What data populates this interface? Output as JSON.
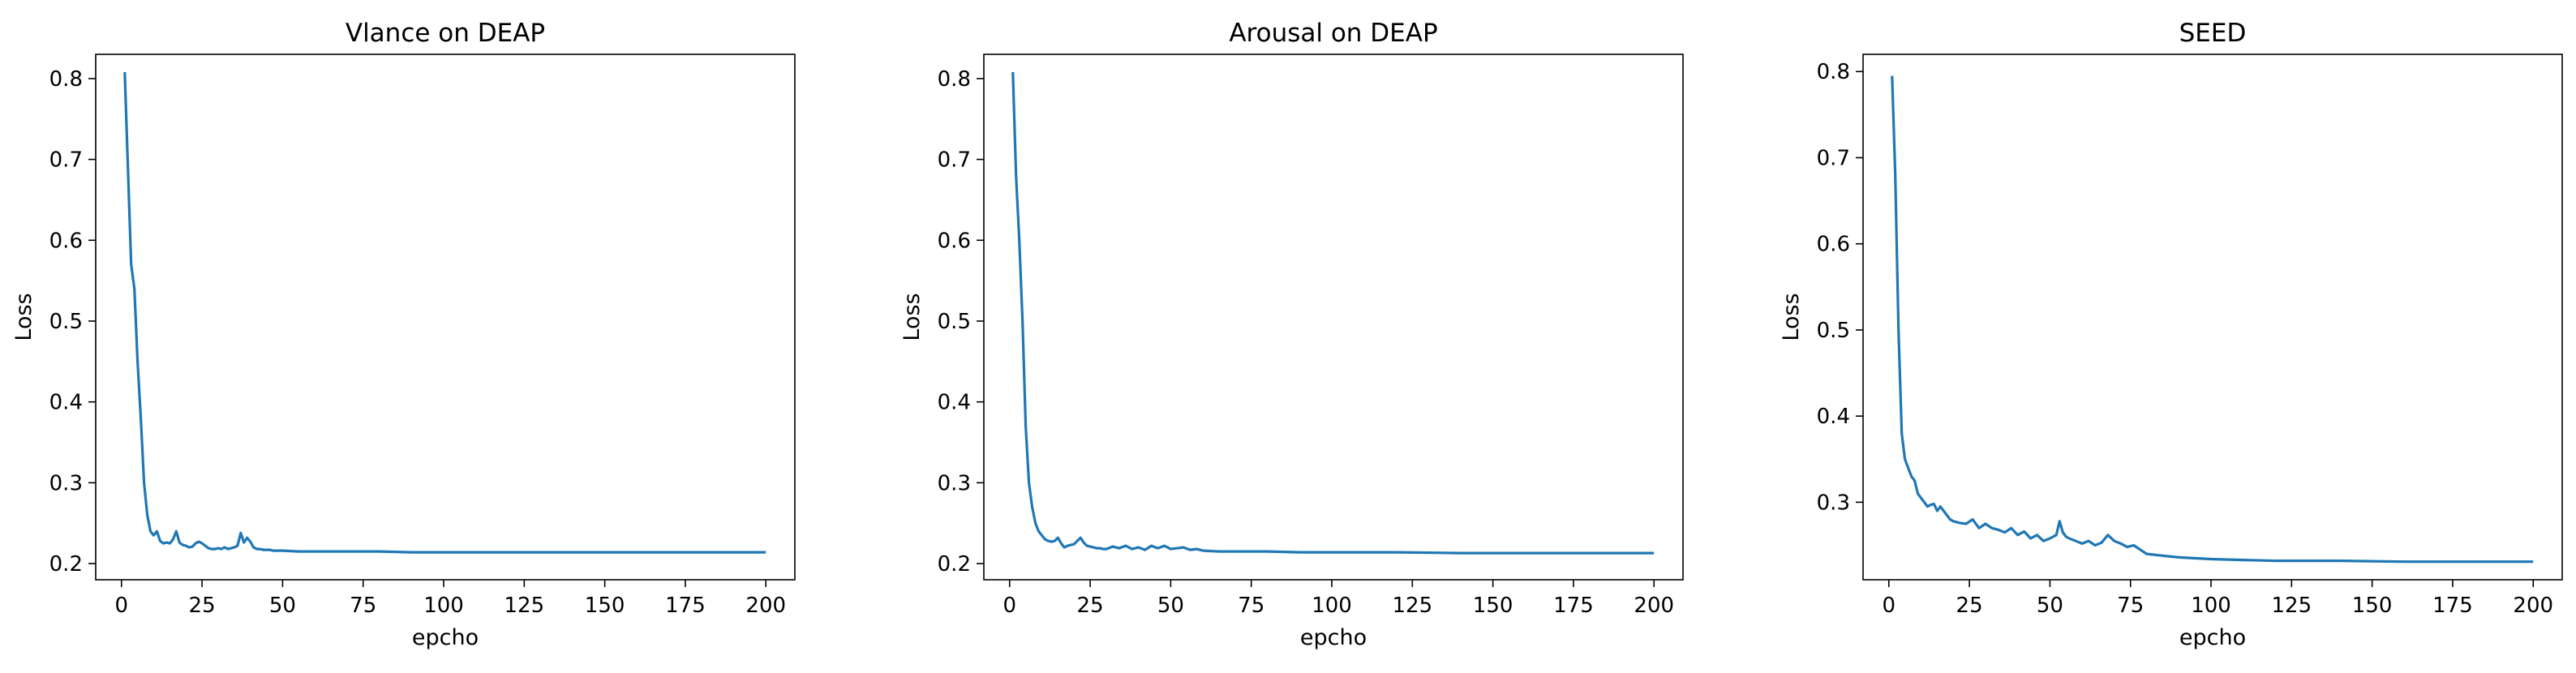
{
  "line_color": "#1f77b4",
  "chart_data": [
    {
      "type": "line",
      "title": "Vlance on DEAP",
      "xlabel": "epcho",
      "ylabel": "Loss",
      "xlim": [
        -8,
        209
      ],
      "ylim": [
        0.18,
        0.83
      ],
      "xticks": [
        0,
        25,
        50,
        75,
        100,
        125,
        150,
        175,
        200
      ],
      "yticks": [
        0.2,
        0.3,
        0.4,
        0.5,
        0.6,
        0.7,
        0.8
      ],
      "grid": false,
      "series": [
        {
          "x": [
            1,
            2,
            3,
            4,
            5,
            6,
            7,
            8,
            9,
            10,
            11,
            12,
            13,
            14,
            15,
            16,
            17,
            18,
            19,
            20,
            21,
            22,
            23,
            24,
            25,
            26,
            27,
            28,
            29,
            30,
            31,
            32,
            33,
            34,
            35,
            36,
            37,
            38,
            39,
            40,
            41,
            42,
            43,
            44,
            45,
            46,
            47,
            48,
            49,
            50,
            55,
            60,
            70,
            80,
            90,
            100,
            120,
            140,
            160,
            180,
            200
          ],
          "y": [
            0.808,
            0.69,
            0.57,
            0.54,
            0.45,
            0.38,
            0.3,
            0.26,
            0.24,
            0.235,
            0.24,
            0.228,
            0.225,
            0.226,
            0.225,
            0.23,
            0.24,
            0.226,
            0.223,
            0.222,
            0.22,
            0.221,
            0.225,
            0.227,
            0.225,
            0.222,
            0.219,
            0.218,
            0.218,
            0.219,
            0.218,
            0.22,
            0.218,
            0.219,
            0.22,
            0.222,
            0.238,
            0.226,
            0.232,
            0.227,
            0.22,
            0.218,
            0.218,
            0.217,
            0.217,
            0.217,
            0.216,
            0.216,
            0.216,
            0.216,
            0.215,
            0.215,
            0.215,
            0.215,
            0.214,
            0.214,
            0.214,
            0.214,
            0.214,
            0.214,
            0.214
          ]
        }
      ]
    },
    {
      "type": "line",
      "title": "Arousal on DEAP",
      "xlabel": "epcho",
      "ylabel": "Loss",
      "xlim": [
        -8,
        209
      ],
      "ylim": [
        0.18,
        0.83
      ],
      "xticks": [
        0,
        25,
        50,
        75,
        100,
        125,
        150,
        175,
        200
      ],
      "yticks": [
        0.2,
        0.3,
        0.4,
        0.5,
        0.6,
        0.7,
        0.8
      ],
      "grid": false,
      "series": [
        {
          "x": [
            1,
            2,
            3,
            4,
            5,
            6,
            7,
            8,
            9,
            10,
            11,
            12,
            13,
            14,
            15,
            16,
            17,
            18,
            19,
            20,
            21,
            22,
            23,
            24,
            25,
            26,
            27,
            28,
            29,
            30,
            32,
            34,
            36,
            38,
            40,
            42,
            44,
            46,
            48,
            50,
            52,
            54,
            56,
            58,
            60,
            65,
            70,
            80,
            90,
            100,
            120,
            140,
            160,
            180,
            200
          ],
          "y": [
            0.808,
            0.68,
            0.6,
            0.5,
            0.37,
            0.3,
            0.27,
            0.25,
            0.24,
            0.235,
            0.23,
            0.228,
            0.227,
            0.228,
            0.232,
            0.225,
            0.22,
            0.222,
            0.223,
            0.224,
            0.228,
            0.232,
            0.226,
            0.222,
            0.221,
            0.22,
            0.219,
            0.219,
            0.218,
            0.218,
            0.221,
            0.219,
            0.222,
            0.218,
            0.22,
            0.217,
            0.222,
            0.219,
            0.222,
            0.218,
            0.219,
            0.22,
            0.217,
            0.218,
            0.216,
            0.215,
            0.215,
            0.215,
            0.214,
            0.214,
            0.214,
            0.213,
            0.213,
            0.213,
            0.213
          ]
        }
      ]
    },
    {
      "type": "line",
      "title": "SEED",
      "xlabel": "epcho",
      "ylabel": "Loss",
      "xlim": [
        -8,
        209
      ],
      "ylim": [
        0.21,
        0.82
      ],
      "xticks": [
        0,
        25,
        50,
        75,
        100,
        125,
        150,
        175,
        200
      ],
      "yticks": [
        0.3,
        0.4,
        0.5,
        0.6,
        0.7,
        0.8
      ],
      "grid": false,
      "series": [
        {
          "x": [
            1,
            2,
            3,
            4,
            5,
            6,
            7,
            8,
            9,
            10,
            11,
            12,
            13,
            14,
            15,
            16,
            17,
            18,
            19,
            20,
            22,
            24,
            26,
            28,
            30,
            32,
            34,
            36,
            38,
            40,
            42,
            44,
            46,
            48,
            50,
            52,
            53,
            54,
            55,
            56,
            58,
            60,
            62,
            64,
            66,
            68,
            70,
            72,
            74,
            76,
            78,
            80,
            85,
            90,
            100,
            110,
            120,
            140,
            160,
            180,
            200
          ],
          "y": [
            0.795,
            0.68,
            0.5,
            0.38,
            0.35,
            0.34,
            0.33,
            0.325,
            0.31,
            0.305,
            0.3,
            0.295,
            0.297,
            0.298,
            0.29,
            0.295,
            0.29,
            0.285,
            0.28,
            0.278,
            0.276,
            0.275,
            0.28,
            0.27,
            0.275,
            0.27,
            0.268,
            0.265,
            0.27,
            0.262,
            0.266,
            0.258,
            0.262,
            0.255,
            0.258,
            0.262,
            0.278,
            0.265,
            0.26,
            0.258,
            0.255,
            0.252,
            0.255,
            0.25,
            0.253,
            0.262,
            0.255,
            0.252,
            0.248,
            0.25,
            0.245,
            0.24,
            0.238,
            0.236,
            0.234,
            0.233,
            0.232,
            0.232,
            0.231,
            0.231,
            0.231
          ]
        }
      ]
    }
  ]
}
